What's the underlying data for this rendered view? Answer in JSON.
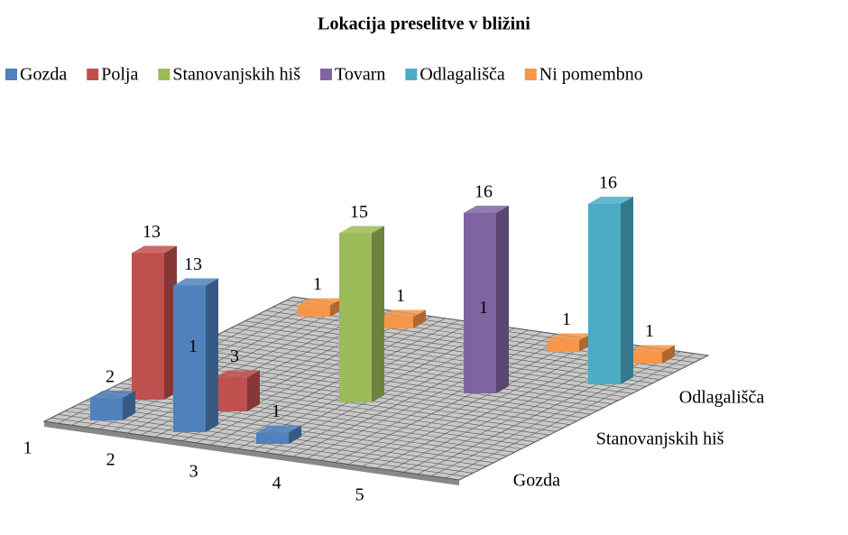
{
  "chart_data": {
    "type": "bar3d",
    "title": "Lokacija preselitve v bližini",
    "categories": [
      "1",
      "2",
      "3",
      "4",
      "5"
    ],
    "series": [
      {
        "name": "Gozda",
        "color": "#4f81bd",
        "values": [
          2,
          13,
          1,
          null,
          null
        ]
      },
      {
        "name": "Polja",
        "color": "#c0504d",
        "values": [
          13,
          3,
          null,
          null,
          null
        ]
      },
      {
        "name": "Stanovanjskih hiš",
        "color": "#9bbb59",
        "values": [
          1,
          null,
          15,
          null,
          null
        ]
      },
      {
        "name": "Tovarn",
        "color": "#8064a2",
        "values": [
          null,
          null,
          null,
          16,
          null
        ]
      },
      {
        "name": "Odlagališča",
        "color": "#4bacc6",
        "values": [
          null,
          null,
          null,
          null,
          16
        ]
      },
      {
        "name": "Ni pomembno",
        "color": "#f79646",
        "values": [
          1,
          1,
          1,
          1,
          1
        ]
      }
    ],
    "legend": "top"
  }
}
